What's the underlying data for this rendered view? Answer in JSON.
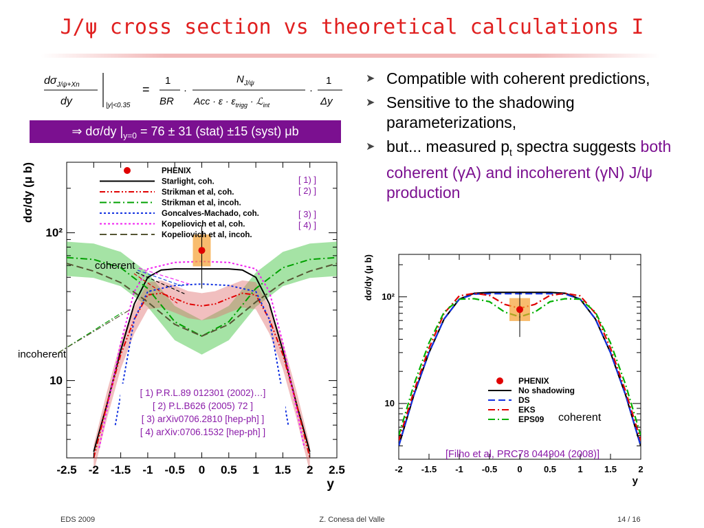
{
  "slide": {
    "title": "J/ψ cross section vs theoretical calculations I",
    "equation": {
      "lhs_num": "dσ",
      "lhs_sub": "J/ψ+Xn",
      "lhs_den": "dy",
      "eval_at": "|y|<0.35",
      "f1_num": "1",
      "f1_den": "BR",
      "f2_num": "N",
      "f2_num_sub": "J/ψ",
      "f2_den": "Acc · ε · ε",
      "f2_den_sub": "trigg",
      "f2_den_tail": " · ℒ",
      "f2_den_tail_sub": "int",
      "f3_num": "1",
      "f3_den": "Δy"
    },
    "result": {
      "prefix": "⇒ dσ/dy |",
      "sub": "y=0",
      "suffix": " = 76 ± 31 (stat) ±15 (syst) μb"
    },
    "bullets": {
      "b1": "Compatible with coherent predictions,",
      "b2": "Sensitive to the shadowing parameterizations,",
      "b3_a": "but... measured p",
      "b3_sub": "t",
      "b3_b": " spectra suggests ",
      "b3_hl1": "both coherent (γA) and incoherent (γN) J/ψ production"
    },
    "footer": {
      "left": "EDS 2009",
      "center": "Z. Conesa del Valle",
      "right": "14 / 16"
    }
  },
  "chart_data": [
    {
      "type": "line",
      "title": "",
      "xlabel": "y",
      "ylabel": "dσ/dy (μ b)",
      "xlim": [
        -2.5,
        2.5
      ],
      "ylim_log": [
        3,
        300
      ],
      "log_y": true,
      "xticks": [
        "-2.5",
        "-2",
        "-1.5",
        "-1",
        "-0.5",
        "0",
        "0.5",
        "1",
        "1.5",
        "2",
        "2.5"
      ],
      "yticks": [
        "10",
        "10²"
      ],
      "legend_position": "top-left",
      "legend": [
        {
          "name": "PHENIX",
          "style": "marker",
          "color": "#e00000"
        },
        {
          "name": "Starlight, coh.",
          "style": "solid",
          "color": "#000000"
        },
        {
          "name": "Strikman et al, coh.",
          "style": "dashdotdot",
          "color": "#e00000"
        },
        {
          "name": "Strikman et al, incoh.",
          "style": "dashdot",
          "color": "#00a000"
        },
        {
          "name": "Goncalves-Machado, coh.",
          "style": "dotted",
          "color": "#1030e0"
        },
        {
          "name": "Kopeliovich et al, coh.",
          "style": "dotted",
          "color": "#f020f0"
        },
        {
          "name": "Kopeliovich et al, incoh.",
          "style": "dashed",
          "color": "#555533"
        }
      ],
      "ref_tags": [
        "[ 1) ]",
        "[ 2) ]",
        "[ 3) ]",
        "[ 4) ]"
      ],
      "references": [
        "[ 1) P.R.L.89 012301 (2002)…]",
        "[ 2) P.L.B626 (2005) 72 ]",
        "[ 3) arXiv0706.2810 [hep-ph]  ]",
        "[ 4) arXiv:0706.1532 [hep-ph] ]"
      ],
      "annotations": [
        "coherent",
        "incoherent"
      ],
      "data_point": {
        "x": 0,
        "y": 76,
        "err_low": 42,
        "err_high": 112
      },
      "series": [
        {
          "name": "Starlight, coh.",
          "x": [
            -2.0,
            -1.75,
            -1.5,
            -1.25,
            -1.0,
            -0.75,
            -0.5,
            -0.25,
            0,
            0.25,
            0.5,
            0.75,
            1.0,
            1.25,
            1.5,
            1.75,
            2.0
          ],
          "y": [
            3.3,
            7,
            16,
            33,
            50,
            56,
            57,
            57,
            57,
            57,
            57,
            56,
            50,
            33,
            16,
            7,
            3.3
          ]
        },
        {
          "name": "Strikman et al, coh.",
          "x": [
            -2.0,
            -1.75,
            -1.5,
            -1.25,
            -1.0,
            -0.75,
            -0.5,
            -0.25,
            0,
            0.25,
            0.5,
            0.75,
            1.0,
            1.25,
            1.5,
            1.75,
            2.0
          ],
          "y": [
            3.0,
            7,
            15,
            26,
            38,
            39,
            36,
            33,
            32,
            33,
            36,
            39,
            38,
            26,
            15,
            7,
            3.0
          ]
        },
        {
          "name": "Strikman et al, incoh.",
          "x": [
            -2.5,
            -2.0,
            -1.5,
            -1.0,
            -0.5,
            0,
            0.5,
            1.0,
            1.5,
            2.0,
            2.5
          ],
          "y": [
            68,
            66,
            58,
            42,
            25,
            20,
            25,
            42,
            58,
            66,
            68
          ]
        },
        {
          "name": "Goncalves-Machado, coh.",
          "x": [
            -1.6,
            -1.25,
            -1.0,
            -0.5,
            0,
            0.5,
            1.0,
            1.25,
            1.6
          ],
          "y": [
            5,
            26,
            40,
            44,
            45,
            44,
            40,
            26,
            5
          ]
        },
        {
          "name": "Kopeliovich et al, coh.",
          "x": [
            -1.9,
            -1.5,
            -1.25,
            -1.0,
            -0.5,
            0,
            0.5,
            1.0,
            1.25,
            1.5,
            1.9
          ],
          "y": [
            3.5,
            18,
            40,
            57,
            63,
            64,
            63,
            57,
            40,
            18,
            3.5
          ]
        },
        {
          "name": "Kopeliovich et al, incoh.",
          "x": [
            -2.5,
            -2.0,
            -1.5,
            -1.0,
            -0.5,
            0,
            0.5,
            1.0,
            1.5,
            2.0,
            2.5
          ],
          "y": [
            62,
            55,
            46,
            34,
            24,
            20,
            24,
            34,
            46,
            55,
            62
          ]
        }
      ]
    },
    {
      "type": "line",
      "title": "",
      "xlabel": "y",
      "ylabel": "dσ/dy (μ b)",
      "xlim": [
        -2,
        2
      ],
      "ylim_log": [
        3,
        250
      ],
      "log_y": true,
      "xticks": [
        "-2",
        "-1.5",
        "-1",
        "-0.5",
        "0",
        "0.5",
        "1",
        "1.5",
        "2"
      ],
      "yticks": [
        "10",
        "10²"
      ],
      "legend_position": "bottom-right",
      "legend": [
        {
          "name": "PHENIX",
          "style": "marker",
          "color": "#e00000"
        },
        {
          "name": "No shadowing",
          "style": "solid",
          "color": "#000000"
        },
        {
          "name": "DS",
          "style": "dashed",
          "color": "#1030e0"
        },
        {
          "name": "EKS",
          "style": "dashdot",
          "color": "#e00000"
        },
        {
          "name": "EPS09",
          "style": "dashdot",
          "color": "#00b000"
        }
      ],
      "annotation": "coherent",
      "reference": "[Filho et al, PRC78 044904 (2008)]",
      "data_point": {
        "x": 0,
        "y": 76,
        "err_low": 42,
        "err_high": 112
      },
      "series": [
        {
          "name": "No shadowing",
          "x": [
            -2.0,
            -1.75,
            -1.5,
            -1.25,
            -1.0,
            -0.75,
            -0.5,
            -0.25,
            0,
            0.25,
            0.5,
            0.75,
            1.0,
            1.25,
            1.5,
            1.75,
            2.0
          ],
          "y": [
            4,
            12,
            30,
            62,
            95,
            108,
            110,
            110,
            110,
            110,
            110,
            108,
            95,
            62,
            30,
            12,
            4
          ]
        },
        {
          "name": "DS",
          "x": [
            -2.0,
            -1.75,
            -1.5,
            -1.25,
            -1.0,
            -0.75,
            -0.5,
            -0.25,
            0,
            0.25,
            0.5,
            0.75,
            1.0,
            1.25,
            1.5,
            1.75,
            2.0
          ],
          "y": [
            4,
            12,
            30,
            62,
            95,
            106,
            107,
            107,
            107,
            107,
            107,
            106,
            95,
            62,
            30,
            12,
            4
          ]
        },
        {
          "name": "EKS",
          "x": [
            -2.0,
            -1.75,
            -1.5,
            -1.25,
            -1.0,
            -0.75,
            -0.5,
            -0.25,
            0,
            0.25,
            0.5,
            0.75,
            1.0,
            1.25,
            1.5,
            1.75,
            2.0
          ],
          "y": [
            4.5,
            13,
            33,
            70,
            102,
            108,
            103,
            85,
            78,
            85,
            103,
            108,
            102,
            70,
            33,
            13,
            4.5
          ]
        },
        {
          "name": "EPS09",
          "x": [
            -2.0,
            -1.75,
            -1.5,
            -1.25,
            -1.0,
            -0.75,
            -0.5,
            -0.25,
            0,
            0.25,
            0.5,
            0.75,
            1.0,
            1.25,
            1.5,
            1.75,
            2.0
          ],
          "y": [
            5,
            15,
            37,
            72,
            95,
            96,
            90,
            72,
            65,
            72,
            90,
            96,
            95,
            72,
            37,
            15,
            5
          ]
        }
      ]
    }
  ]
}
